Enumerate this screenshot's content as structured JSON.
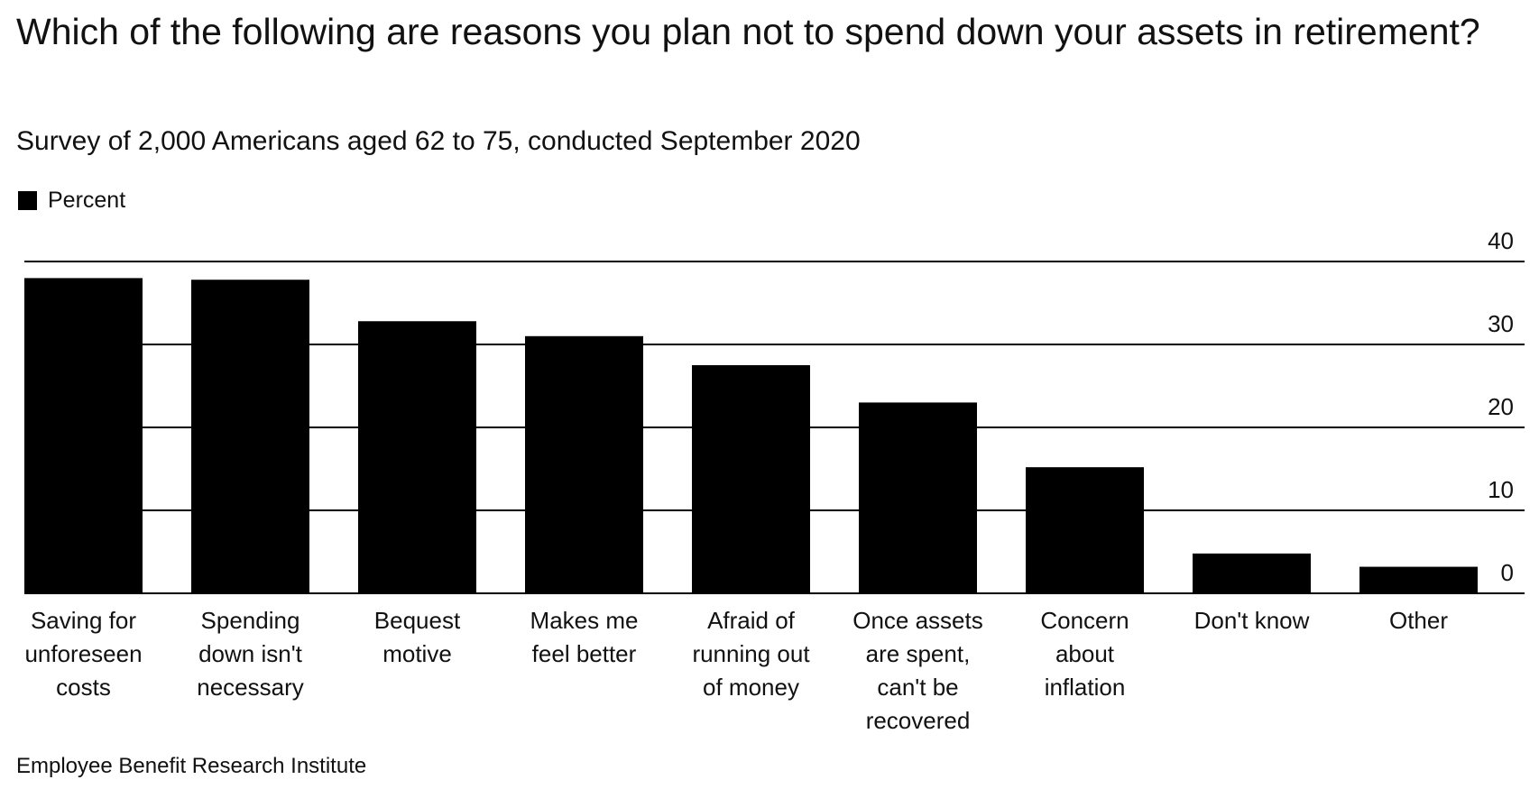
{
  "title": "Which of the following are reasons you plan not to spend down your assets in retirement?",
  "subtitle": "Survey of 2,000 Americans aged 62 to 75, conducted September 2020",
  "source": "Employee Benefit Research Institute",
  "colors": {
    "bar": "#000000",
    "grid": "#000000",
    "text": "#111111"
  },
  "chart_data": {
    "type": "bar",
    "categories": [
      [
        "Saving for",
        "unforeseen",
        "costs"
      ],
      [
        "Spending",
        "down isn't",
        "necessary"
      ],
      [
        "Bequest",
        "motive"
      ],
      [
        "Makes me",
        "feel better"
      ],
      [
        "Afraid of",
        "running out",
        "of money"
      ],
      [
        "Once assets",
        "are spent,",
        "can't be",
        "recovered"
      ],
      [
        "Concern",
        "about",
        "inflation"
      ],
      [
        "Don't know"
      ],
      [
        "Other"
      ]
    ],
    "series": [
      {
        "name": "Percent",
        "values": [
          38,
          37.8,
          32.8,
          31,
          27.5,
          23,
          15.2,
          4.8,
          3.2
        ]
      }
    ],
    "ylim": [
      0,
      40
    ],
    "yticks": [
      0,
      10,
      20,
      30,
      40
    ],
    "grid": true,
    "legend": "top-left",
    "axis_position": "right"
  }
}
